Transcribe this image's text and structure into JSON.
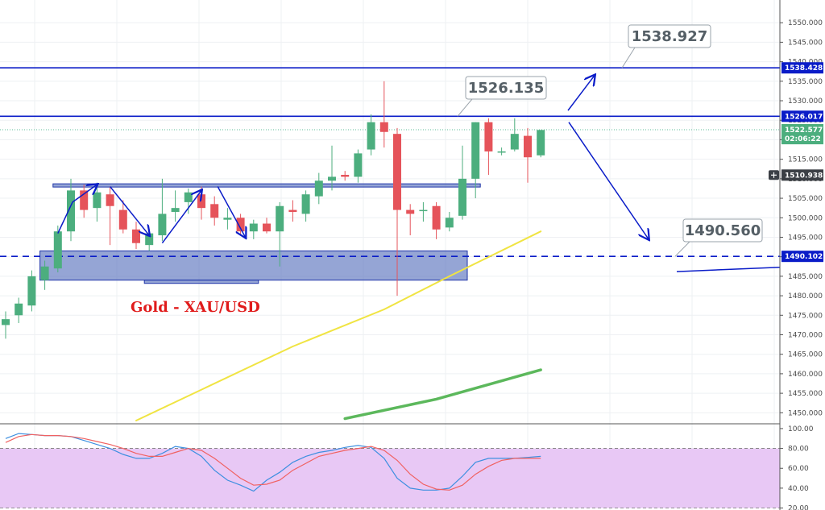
{
  "chart_data": {
    "type": "candlestick",
    "title": "Gold - XAU/USD",
    "ylim": [
      1448,
      1555
    ],
    "y_ticks": [
      1450,
      1455,
      1460,
      1465,
      1470,
      1475,
      1480,
      1485,
      1490,
      1495,
      1500,
      1505,
      1510,
      1515,
      1520,
      1525,
      1530,
      1535,
      1540,
      1545,
      1550
    ],
    "y_tick_labels": [
      "1450.000",
      "1455.000",
      "1460.000",
      "1465.000",
      "1470.000",
      "1475.000",
      "1480.000",
      "1485.000",
      "1490.000",
      "1495.000",
      "1500.000",
      "1505.000",
      "1510.000",
      "1515.000",
      "1520.000",
      "1525.000",
      "1530.000",
      "1535.000",
      "1540.000",
      "1545.000",
      "1550.000"
    ],
    "grid": true,
    "candles": [
      {
        "o": 1472.5,
        "h": 1476.0,
        "l": 1469.0,
        "c": 1474.0
      },
      {
        "o": 1475.0,
        "h": 1479.5,
        "l": 1473.0,
        "c": 1478.0
      },
      {
        "o": 1477.5,
        "h": 1486.5,
        "l": 1476.0,
        "c": 1485.0
      },
      {
        "o": 1484.0,
        "h": 1489.0,
        "l": 1481.5,
        "c": 1487.5
      },
      {
        "o": 1487.0,
        "h": 1498.0,
        "l": 1486.0,
        "c": 1496.5
      },
      {
        "o": 1496.5,
        "h": 1510.0,
        "l": 1494.0,
        "c": 1507.0
      },
      {
        "o": 1507.0,
        "h": 1508.5,
        "l": 1500.0,
        "c": 1502.0
      },
      {
        "o": 1502.5,
        "h": 1509.0,
        "l": 1499.0,
        "c": 1506.5
      },
      {
        "o": 1506.0,
        "h": 1508.0,
        "l": 1493.0,
        "c": 1503.0
      },
      {
        "o": 1502.0,
        "h": 1504.5,
        "l": 1496.0,
        "c": 1497.0
      },
      {
        "o": 1497.0,
        "h": 1499.0,
        "l": 1492.0,
        "c": 1493.5
      },
      {
        "o": 1493.0,
        "h": 1497.0,
        "l": 1491.5,
        "c": 1496.0
      },
      {
        "o": 1495.5,
        "h": 1510.0,
        "l": 1494.0,
        "c": 1501.0
      },
      {
        "o": 1501.5,
        "h": 1507.0,
        "l": 1499.0,
        "c": 1502.5
      },
      {
        "o": 1504.0,
        "h": 1507.5,
        "l": 1501.0,
        "c": 1506.5
      },
      {
        "o": 1506.0,
        "h": 1508.0,
        "l": 1499.5,
        "c": 1502.5
      },
      {
        "o": 1503.5,
        "h": 1505.5,
        "l": 1498.0,
        "c": 1500.0
      },
      {
        "o": 1499.5,
        "h": 1502.5,
        "l": 1497.0,
        "c": 1500.0
      },
      {
        "o": 1500.0,
        "h": 1501.0,
        "l": 1495.5,
        "c": 1496.5
      },
      {
        "o": 1496.5,
        "h": 1499.5,
        "l": 1494.5,
        "c": 1498.5
      },
      {
        "o": 1498.5,
        "h": 1500.0,
        "l": 1496.0,
        "c": 1496.5
      },
      {
        "o": 1496.5,
        "h": 1504.0,
        "l": 1487.5,
        "c": 1503.0
      },
      {
        "o": 1502.0,
        "h": 1504.5,
        "l": 1499.0,
        "c": 1501.5
      },
      {
        "o": 1501.0,
        "h": 1507.0,
        "l": 1499.0,
        "c": 1506.0
      },
      {
        "o": 1505.5,
        "h": 1511.5,
        "l": 1503.5,
        "c": 1509.5
      },
      {
        "o": 1509.5,
        "h": 1518.5,
        "l": 1507.0,
        "c": 1510.5
      },
      {
        "o": 1511.0,
        "h": 1512.0,
        "l": 1509.5,
        "c": 1510.5
      },
      {
        "o": 1510.5,
        "h": 1517.5,
        "l": 1509.0,
        "c": 1516.5
      },
      {
        "o": 1517.5,
        "h": 1526.5,
        "l": 1516.0,
        "c": 1524.5
      },
      {
        "o": 1524.5,
        "h": 1535.0,
        "l": 1518.0,
        "c": 1522.0
      },
      {
        "o": 1521.5,
        "h": 1523.0,
        "l": 1480.0,
        "c": 1502.0
      },
      {
        "o": 1502.0,
        "h": 1503.5,
        "l": 1495.5,
        "c": 1501.0
      },
      {
        "o": 1502.0,
        "h": 1504.0,
        "l": 1499.0,
        "c": 1502.0
      },
      {
        "o": 1503.0,
        "h": 1504.0,
        "l": 1494.5,
        "c": 1497.0
      },
      {
        "o": 1497.5,
        "h": 1501.5,
        "l": 1496.5,
        "c": 1500.0
      },
      {
        "o": 1500.5,
        "h": 1518.5,
        "l": 1499.5,
        "c": 1510.0
      },
      {
        "o": 1510.0,
        "h": 1524.5,
        "l": 1505.0,
        "c": 1524.5
      },
      {
        "o": 1524.5,
        "h": 1525.5,
        "l": 1511.0,
        "c": 1517.0
      },
      {
        "o": 1517.0,
        "h": 1518.0,
        "l": 1516.0,
        "c": 1517.0
      },
      {
        "o": 1517.5,
        "h": 1525.5,
        "l": 1517.0,
        "c": 1521.5
      },
      {
        "o": 1521.0,
        "h": 1523.0,
        "l": 1509.0,
        "c": 1515.5
      },
      {
        "o": 1516.0,
        "h": 1522.5,
        "l": 1515.5,
        "c": 1522.5
      }
    ],
    "moving_averages": [
      {
        "color": "#f0e442",
        "x": [
          10,
          22,
          29,
          34,
          41
        ],
        "y": [
          1448.0,
          1467.0,
          1476.5,
          1485.0,
          1496.5
        ]
      },
      {
        "color": "#5cb85c",
        "x": [
          26,
          33,
          41
        ],
        "y": [
          1448.5,
          1453.5,
          1461.0
        ]
      }
    ],
    "levels": [
      {
        "value": 1538.428,
        "label": "1538.428",
        "style": "solid",
        "color": "#0a1cc8"
      },
      {
        "value": 1526.017,
        "label": "1526.017",
        "style": "solid",
        "color": "#0a1cc8"
      },
      {
        "value": 1490.102,
        "label": "1490.102",
        "style": "dashed",
        "color": "#0a1cc8"
      }
    ],
    "callouts": [
      "1538.927",
      "1526.135",
      "1490.560"
    ],
    "price_tags": {
      "last": "1522.577",
      "countdown": "02:06:22",
      "crosshair": "1510.938"
    },
    "zones": [
      {
        "from_bar": 4,
        "to_bar": 36,
        "low": 1507.9,
        "high": 1508.7
      },
      {
        "from_bar": 3,
        "to_bar": 35,
        "low": 1484.0,
        "high": 1491.5
      },
      {
        "from_bar": 11,
        "to_bar": 19,
        "low": 1483.3,
        "high": 1484.0
      }
    ],
    "oscillator": {
      "ylim": [
        18,
        104
      ],
      "y_ticks": [
        20,
        40,
        60,
        80,
        100
      ],
      "y_tick_labels": [
        "20.00",
        "40.00",
        "60.00",
        "80.00",
        "100.00"
      ],
      "band": [
        20,
        80
      ],
      "k_line": {
        "color": "#3d8fe0",
        "values": [
          90,
          95,
          94,
          93,
          93,
          92,
          88,
          84,
          80,
          74,
          70,
          70,
          75,
          82,
          80,
          72,
          58,
          48,
          43,
          37,
          48,
          56,
          66,
          72,
          76,
          78,
          81,
          83,
          81,
          70,
          50,
          40,
          38,
          38,
          40,
          52,
          66,
          70,
          70,
          70,
          71,
          72
        ]
      },
      "d_line": {
        "color": "#f06161",
        "values": [
          86,
          92,
          94,
          93,
          93,
          92,
          90,
          87,
          84,
          80,
          75,
          72,
          72,
          76,
          80,
          78,
          70,
          60,
          50,
          43,
          44,
          48,
          58,
          65,
          72,
          75,
          78,
          80,
          82,
          78,
          68,
          54,
          44,
          39,
          38,
          43,
          54,
          62,
          68,
          70,
          70,
          70
        ]
      }
    }
  }
}
